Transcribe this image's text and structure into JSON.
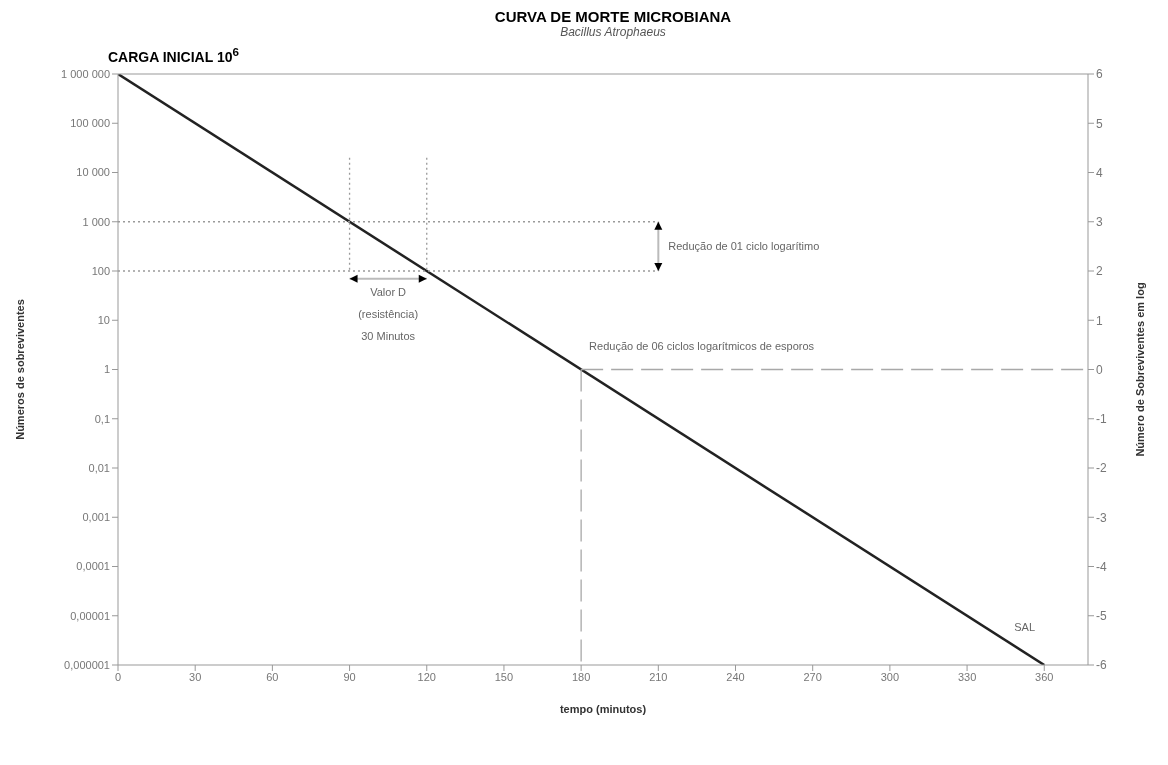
{
  "chart_data": {
    "type": "line",
    "title": "CURVA DE MORTE MICROBIANA",
    "subtitle": "Bacillus Atrophaeus",
    "xlabel": "tempo (minutos)",
    "ylabel": "Números de sobreviventes",
    "y2label": "Número de Sobreviventes em log",
    "series": [
      {
        "color": "#222222",
        "x": [
          0,
          360
        ],
        "values": [
          1000000,
          1e-06
        ],
        "line_style": "solid"
      },
      {
        "color": "#9a9a9a",
        "x": [
          0,
          210
        ],
        "values": [
          1000,
          1000
        ],
        "line_style": "dotted"
      },
      {
        "color": "#9a9a9a",
        "x": [
          0,
          210
        ],
        "values": [
          100,
          100
        ],
        "line_style": "dotted"
      },
      {
        "color": "#9a9a9a",
        "x": [
          90,
          90
        ],
        "values": [
          20000,
          100
        ],
        "line_style": "dotted"
      },
      {
        "color": "#9a9a9a",
        "x": [
          120,
          120
        ],
        "values": [
          20000,
          100
        ],
        "line_style": "dotted"
      },
      {
        "color": "#a8a8a8",
        "x": [
          180,
          180
        ],
        "values": [
          1,
          1e-06
        ],
        "line_style": "dashed"
      },
      {
        "color": "#a8a8a8",
        "x": [
          180,
          377
        ],
        "values": [
          1,
          1
        ],
        "line_style": "dashed"
      }
    ],
    "xlim": [
      0,
      377
    ],
    "xticks": [
      0,
      30,
      60,
      90,
      120,
      150,
      180,
      210,
      240,
      270,
      300,
      330,
      360
    ],
    "log": true,
    "ylim": [
      1e-06,
      1000000
    ],
    "yticks": [
      {
        "value": 1000000,
        "label": "1 000 000"
      },
      {
        "value": 100000,
        "label": "100 000"
      },
      {
        "value": 10000,
        "label": "10 000"
      },
      {
        "value": 1000,
        "label": "1 000"
      },
      100,
      10,
      1,
      {
        "value": 0.1,
        "label": "0,1"
      },
      {
        "value": 0.01,
        "label": "0,01"
      },
      {
        "value": 0.001,
        "label": "0,001"
      },
      {
        "value": 0.0001,
        "label": "0,0001"
      },
      {
        "value": 1e-05,
        "label": "0,00001"
      },
      {
        "value": 1e-06,
        "label": "0,000001"
      }
    ],
    "y2lim": [
      -6,
      6
    ],
    "y2ticks": [
      -6,
      -5,
      -4,
      -3,
      -2,
      -1,
      0,
      1,
      2,
      3,
      4,
      5,
      6
    ],
    "marker": "none",
    "annotations": [
      "CARGA INICIAL 10$^{6}$",
      "Redução de 01 ciclo logarítimo",
      "Valor D (resistência) 30 Minutos",
      "Redução de 06 ciclos logarítmicos de esporos",
      "SAL"
    ]
  }
}
